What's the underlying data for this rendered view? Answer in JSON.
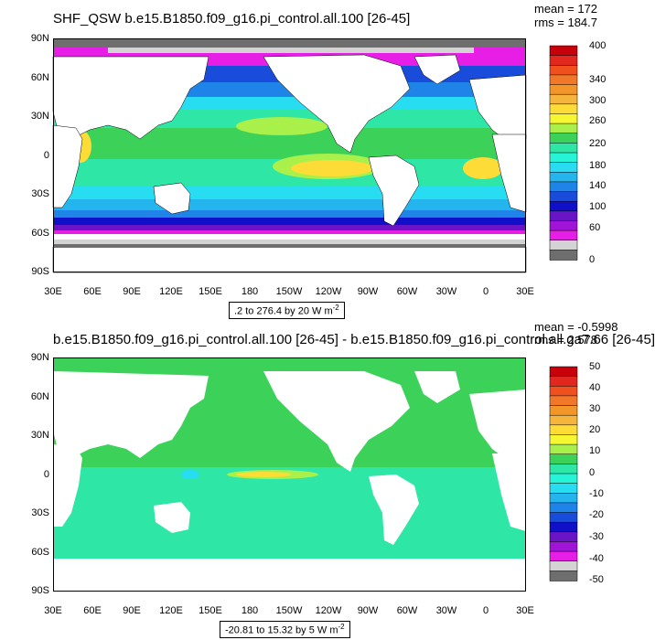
{
  "colors": {
    "ocean_bg": "#ffffff",
    "land": "#ffffff",
    "missing": "#d3d3d3",
    "ice": "#6e6e6e"
  },
  "panels": [
    {
      "title": "SHF_QSW b.e15.B1850.f09_g16.pi_control.all.100 [26-45]",
      "mean": "mean = 172",
      "rms": "rms = 184.7",
      "range": ".2 to 276.4 by 20  W m",
      "range_sup": "-2",
      "y_labels": [
        "90N",
        "60N",
        "30N",
        "0",
        "30S",
        "60S",
        "90S"
      ],
      "x_labels": [
        "30E",
        "60E",
        "90E",
        "120E",
        "150E",
        "180",
        "150W",
        "120W",
        "90W",
        "60W",
        "30W",
        "0",
        "30E"
      ],
      "colorbar_labels": [
        "400",
        "340",
        "300",
        "260",
        "220",
        "180",
        "140",
        "100",
        "60",
        "0"
      ],
      "colorbar_colors": [
        "#c8000a",
        "#e2281e",
        "#f0501e",
        "#f07828",
        "#f3962a",
        "#f5b43c",
        "#fddc38",
        "#f6f632",
        "#aaf04a",
        "#3cd25a",
        "#2ee6a6",
        "#26f4d6",
        "#28dcf2",
        "#24b4ee",
        "#1e84e8",
        "#1a4cdc",
        "#1010c8",
        "#6a14c8",
        "#a014d8",
        "#e61ee6",
        "#d3d3d3",
        "#6e6e6e"
      ]
    },
    {
      "title": "b.e15.B1850.f09_g16.pi_control.all.100 [26-45] - b.e15.B1850.f09_g16.pi_control.all.ga7.66 [26-45]",
      "mean": "mean = -0.5998",
      "rms": "rms = 2.578",
      "range": "-20.81 to 15.32 by 5  W m",
      "range_sup": "-2",
      "y_labels": [
        "90N",
        "60N",
        "30N",
        "0",
        "30S",
        "60S",
        "90S"
      ],
      "x_labels": [
        "30E",
        "60E",
        "90E",
        "120E",
        "150E",
        "180",
        "150W",
        "120W",
        "90W",
        "60W",
        "30W",
        "0",
        "30E"
      ],
      "colorbar_labels": [
        "50",
        "40",
        "30",
        "20",
        "10",
        "0",
        "-10",
        "-20",
        "-30",
        "-40",
        "-50"
      ],
      "colorbar_colors": [
        "#c8000a",
        "#e2281e",
        "#f0501e",
        "#f07828",
        "#f3962a",
        "#f5b43c",
        "#fddc38",
        "#f6f632",
        "#aaf04a",
        "#3cd25a",
        "#2ee6a6",
        "#26f4d6",
        "#28dcf2",
        "#24b4ee",
        "#1e84e8",
        "#1a4cdc",
        "#1010c8",
        "#6a14c8",
        "#a014d8",
        "#e61ee6",
        "#d3d3d3",
        "#6e6e6e"
      ]
    }
  ]
}
